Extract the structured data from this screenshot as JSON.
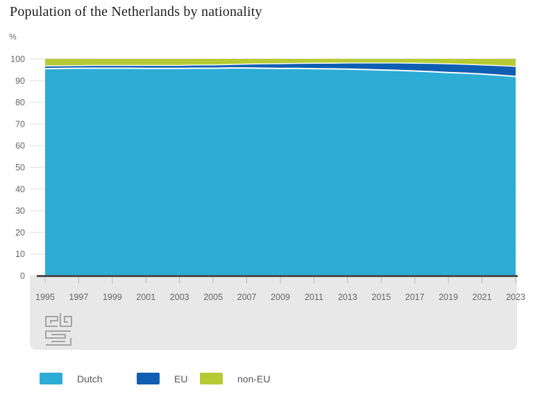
{
  "title": "Population of the Netherlands by nationality",
  "y_axis_unit": "%",
  "colors": {
    "dutch": "#2dacd5",
    "eu": "#0f5eb2",
    "non_eu": "#b5cb35",
    "grid": "#dedede",
    "axis_line": "#4d4d4d",
    "tick": "#b8b8b8",
    "tick_label": "#666666",
    "footer_band": "#e8e8e8",
    "logo": "#a3a3a3",
    "boundary": "#ffffff"
  },
  "chart_data": {
    "type": "area",
    "stacked": true,
    "title": "Population of the Netherlands by nationality",
    "ylabel": "%",
    "xlabel": "",
    "ylim": [
      0,
      100
    ],
    "yticks": [
      0,
      10,
      20,
      30,
      40,
      50,
      60,
      70,
      80,
      90,
      100
    ],
    "xticks": [
      1995,
      1997,
      1999,
      2001,
      2003,
      2005,
      2007,
      2009,
      2011,
      2013,
      2015,
      2017,
      2019,
      2021,
      2023
    ],
    "grid": true,
    "legend_position": "bottom",
    "x": [
      1995,
      1996,
      1997,
      1998,
      1999,
      2000,
      2001,
      2002,
      2003,
      2004,
      2005,
      2006,
      2007,
      2008,
      2009,
      2010,
      2011,
      2012,
      2013,
      2014,
      2015,
      2016,
      2017,
      2018,
      2019,
      2020,
      2021,
      2022,
      2023
    ],
    "series": [
      {
        "name": "Dutch",
        "color": "#2dacd5",
        "values": [
          95.5,
          95.6,
          95.7,
          95.7,
          95.7,
          95.7,
          95.6,
          95.6,
          95.6,
          95.7,
          95.7,
          95.8,
          95.8,
          95.7,
          95.6,
          95.6,
          95.5,
          95.4,
          95.3,
          95.1,
          94.9,
          94.7,
          94.4,
          94.1,
          93.7,
          93.4,
          93.0,
          92.5,
          91.9
        ]
      },
      {
        "name": "EU",
        "color": "#0f5eb2",
        "values": [
          1.2,
          1.2,
          1.2,
          1.3,
          1.3,
          1.3,
          1.4,
          1.4,
          1.4,
          1.5,
          1.5,
          1.6,
          1.8,
          2.0,
          2.2,
          2.3,
          2.5,
          2.6,
          2.8,
          3.0,
          3.2,
          3.4,
          3.6,
          3.8,
          4.0,
          4.1,
          4.2,
          4.4,
          4.6
        ]
      },
      {
        "name": "non-EU",
        "color": "#b5cb35",
        "values": [
          3.3,
          3.2,
          3.1,
          3.0,
          3.0,
          3.0,
          3.0,
          3.0,
          3.0,
          2.8,
          2.8,
          2.6,
          2.4,
          2.3,
          2.2,
          2.1,
          2.0,
          2.0,
          1.9,
          1.9,
          1.9,
          1.9,
          2.0,
          2.1,
          2.3,
          2.5,
          2.8,
          3.1,
          3.5
        ]
      }
    ]
  },
  "logo_name": "cbs-logo"
}
